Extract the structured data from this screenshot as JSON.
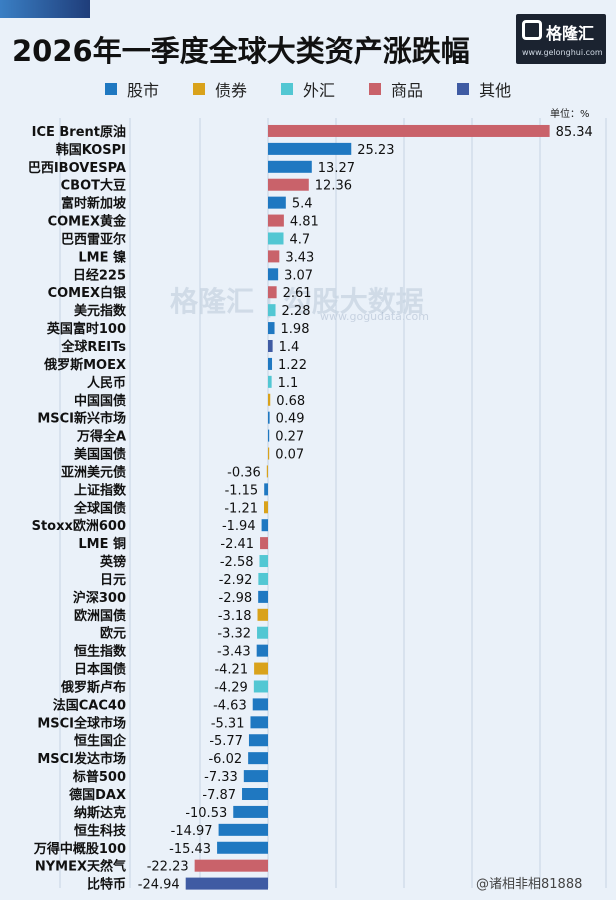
{
  "header": {
    "title": "2026年一季度全球大类资产涨跌幅",
    "logo_text": "格隆汇",
    "logo_url": "www.gelonghui.com",
    "unit": "单位：%"
  },
  "watermark": {
    "text": "格隆汇 | 勾股大数据",
    "url": "www.gogudata.com"
  },
  "footer": {
    "handle": "@诸相非相81888"
  },
  "colors": {
    "股市": "#1f78c1",
    "债券": "#d9a21b",
    "外汇": "#52c7d3",
    "商品": "#c9626a",
    "其他": "#3f5ba3"
  },
  "chart_data": {
    "type": "bar",
    "orientation": "horizontal",
    "legend": [
      "股市",
      "债券",
      "外汇",
      "商品",
      "其他"
    ],
    "legend_position": "top",
    "grid": true,
    "items": [
      {
        "name": "ICE Brent原油",
        "value": 85.34,
        "cls": "商品"
      },
      {
        "name": "韩国KOSPI",
        "value": 25.23,
        "cls": "股市"
      },
      {
        "name": "巴西IBOVESPA",
        "value": 13.27,
        "cls": "股市"
      },
      {
        "name": "CBOT大豆",
        "value": 12.36,
        "cls": "商品"
      },
      {
        "name": "富时新加坡",
        "value": 5.4,
        "cls": "股市"
      },
      {
        "name": "COMEX黄金",
        "value": 4.81,
        "cls": "商品"
      },
      {
        "name": "巴西雷亚尔",
        "value": 4.7,
        "cls": "外汇"
      },
      {
        "name": "LME 镍",
        "value": 3.43,
        "cls": "商品"
      },
      {
        "name": "日经225",
        "value": 3.07,
        "cls": "股市"
      },
      {
        "name": "COMEX白银",
        "value": 2.61,
        "cls": "商品"
      },
      {
        "name": "美元指数",
        "value": 2.28,
        "cls": "外汇"
      },
      {
        "name": "英国富时100",
        "value": 1.98,
        "cls": "股市"
      },
      {
        "name": "全球REITs",
        "value": 1.4,
        "cls": "其他"
      },
      {
        "name": "俄罗斯MOEX",
        "value": 1.22,
        "cls": "股市"
      },
      {
        "name": "人民币",
        "value": 1.1,
        "cls": "外汇"
      },
      {
        "name": "中国国债",
        "value": 0.68,
        "cls": "债券"
      },
      {
        "name": "MSCI新兴市场",
        "value": 0.49,
        "cls": "股市"
      },
      {
        "name": "万得全A",
        "value": 0.27,
        "cls": "股市"
      },
      {
        "name": "美国国债",
        "value": 0.07,
        "cls": "债券"
      },
      {
        "name": "亚洲美元债",
        "value": -0.36,
        "cls": "债券"
      },
      {
        "name": "上证指数",
        "value": -1.15,
        "cls": "股市"
      },
      {
        "name": "全球国债",
        "value": -1.21,
        "cls": "债券"
      },
      {
        "name": "Stoxx欧洲600",
        "value": -1.94,
        "cls": "股市"
      },
      {
        "name": "LME 铜",
        "value": -2.41,
        "cls": "商品"
      },
      {
        "name": "英镑",
        "value": -2.58,
        "cls": "外汇"
      },
      {
        "name": "日元",
        "value": -2.92,
        "cls": "外汇"
      },
      {
        "name": "沪深300",
        "value": -2.98,
        "cls": "股市"
      },
      {
        "name": "欧洲国债",
        "value": -3.18,
        "cls": "债券"
      },
      {
        "name": "欧元",
        "value": -3.32,
        "cls": "外汇"
      },
      {
        "name": "恒生指数",
        "value": -3.43,
        "cls": "股市"
      },
      {
        "name": "日本国债",
        "value": -4.21,
        "cls": "债券"
      },
      {
        "name": "俄罗斯卢布",
        "value": -4.29,
        "cls": "外汇"
      },
      {
        "name": "法国CAC40",
        "value": -4.63,
        "cls": "股市"
      },
      {
        "name": "MSCI全球市场",
        "value": -5.31,
        "cls": "股市"
      },
      {
        "name": "恒生国企",
        "value": -5.77,
        "cls": "股市"
      },
      {
        "name": "MSCI发达市场",
        "value": -6.02,
        "cls": "股市"
      },
      {
        "name": "标普500",
        "value": -7.33,
        "cls": "股市"
      },
      {
        "name": "德国DAX",
        "value": -7.87,
        "cls": "股市"
      },
      {
        "name": "纳斯达克",
        "value": -10.53,
        "cls": "股市"
      },
      {
        "name": "恒生科技",
        "value": -14.97,
        "cls": "股市"
      },
      {
        "name": "万得中概股100",
        "value": -15.43,
        "cls": "股市"
      },
      {
        "name": "NYMEX天然气",
        "value": -22.23,
        "cls": "商品"
      },
      {
        "name": "比特币",
        "value": -24.94,
        "cls": "其他"
      }
    ]
  }
}
